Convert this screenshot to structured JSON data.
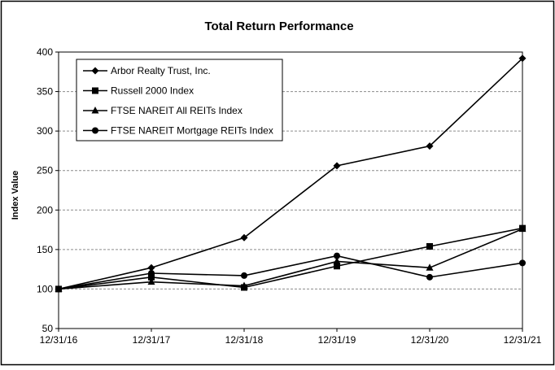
{
  "chart_data": {
    "type": "line",
    "title": "Total Return Performance",
    "xlabel": "",
    "ylabel": "Index Value",
    "categories": [
      "12/31/16",
      "12/31/17",
      "12/31/18",
      "12/31/19",
      "12/31/20",
      "12/31/21"
    ],
    "ylim": [
      50,
      400
    ],
    "yticks": [
      50,
      100,
      150,
      200,
      250,
      300,
      350,
      400
    ],
    "grid": "horizontal dashed",
    "legend_position": "top-left",
    "series": [
      {
        "name": "Arbor Realty Trust, Inc.",
        "marker": "diamond",
        "values": [
          100,
          127,
          165,
          256,
          281,
          392
        ]
      },
      {
        "name": "Russell 2000 Index",
        "marker": "square",
        "values": [
          100,
          115,
          102,
          129,
          154,
          177
        ]
      },
      {
        "name": "FTSE NAREIT All REITs Index",
        "marker": "triangle",
        "values": [
          100,
          109,
          104,
          135,
          127,
          176
        ]
      },
      {
        "name": "FTSE NAREIT Mortgage REITs Index",
        "marker": "circle",
        "values": [
          100,
          120,
          117,
          142,
          115,
          133
        ]
      }
    ]
  }
}
